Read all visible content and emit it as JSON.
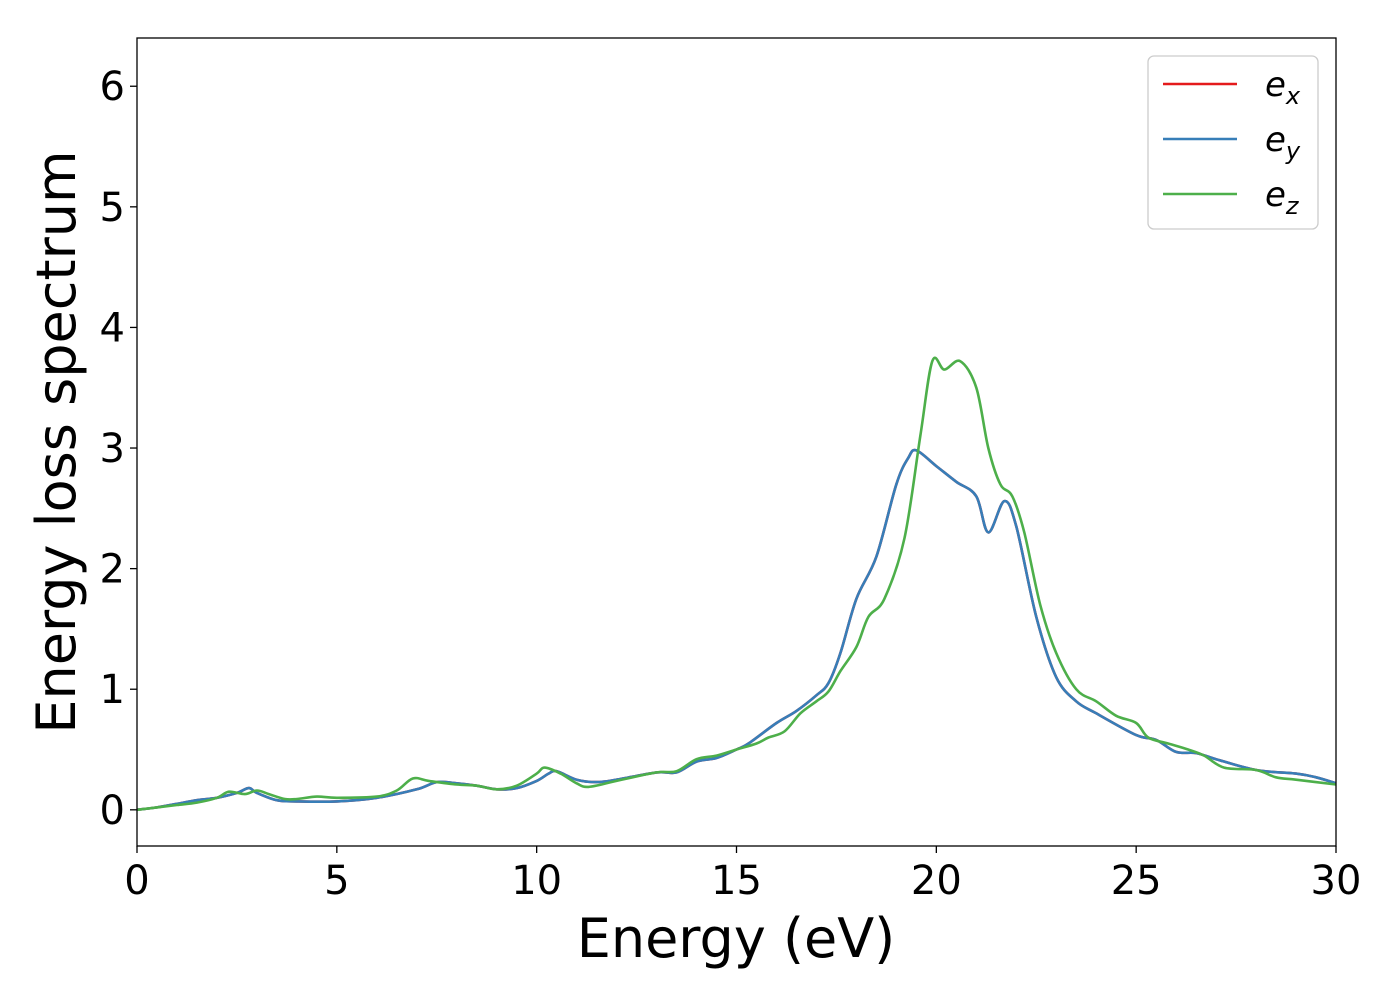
{
  "chart_data": {
    "type": "line",
    "xlabel": "Energy (eV)",
    "ylabel": "Energy loss spectrum",
    "xlim": [
      0,
      30
    ],
    "ylim": [
      -0.3,
      6.4
    ],
    "xticks": [
      0,
      5,
      10,
      15,
      20,
      25,
      30
    ],
    "yticks": [
      0,
      1,
      2,
      3,
      4,
      5,
      6
    ],
    "grid": false,
    "legend_position": "top-right",
    "series": [
      {
        "name_base": "e",
        "name_sub": "x",
        "color": "#e41a1c",
        "x": [
          0,
          0.5,
          1,
          1.5,
          2,
          2.5,
          2.8,
          3,
          3.5,
          4,
          5,
          6,
          7,
          7.5,
          8,
          8.5,
          9,
          9.5,
          10,
          10.3,
          10.5,
          11,
          11.5,
          12,
          13,
          13.5,
          14,
          14.5,
          15,
          15.3,
          16,
          16.5,
          17,
          17.3,
          17.6,
          18,
          18.5,
          19,
          19.3,
          19.5,
          20,
          20.5,
          21,
          21.3,
          21.7,
          22,
          22.5,
          23,
          23.5,
          24,
          25,
          25.5,
          26,
          26.5,
          27,
          28,
          29,
          29.5,
          30
        ],
        "y": [
          0,
          0.02,
          0.05,
          0.08,
          0.1,
          0.14,
          0.18,
          0.14,
          0.08,
          0.07,
          0.07,
          0.1,
          0.17,
          0.23,
          0.22,
          0.2,
          0.17,
          0.18,
          0.24,
          0.3,
          0.32,
          0.25,
          0.23,
          0.25,
          0.31,
          0.31,
          0.4,
          0.43,
          0.5,
          0.55,
          0.72,
          0.82,
          0.95,
          1.05,
          1.3,
          1.75,
          2.1,
          2.7,
          2.92,
          2.98,
          2.85,
          2.72,
          2.6,
          2.3,
          2.56,
          2.35,
          1.6,
          1.1,
          0.9,
          0.8,
          0.62,
          0.58,
          0.48,
          0.47,
          0.42,
          0.33,
          0.3,
          0.27,
          0.22
        ]
      },
      {
        "name_base": "e",
        "name_sub": "y",
        "color": "#377eb8",
        "x": [
          0,
          0.5,
          1,
          1.5,
          2,
          2.5,
          2.8,
          3,
          3.5,
          4,
          5,
          6,
          7,
          7.5,
          8,
          8.5,
          9,
          9.5,
          10,
          10.3,
          10.5,
          11,
          11.5,
          12,
          13,
          13.5,
          14,
          14.5,
          15,
          15.3,
          16,
          16.5,
          17,
          17.3,
          17.6,
          18,
          18.5,
          19,
          19.3,
          19.5,
          20,
          20.5,
          21,
          21.3,
          21.7,
          22,
          22.5,
          23,
          23.5,
          24,
          25,
          25.5,
          26,
          26.5,
          27,
          28,
          29,
          29.5,
          30
        ],
        "y": [
          0,
          0.02,
          0.05,
          0.08,
          0.1,
          0.14,
          0.18,
          0.14,
          0.08,
          0.07,
          0.07,
          0.1,
          0.17,
          0.23,
          0.22,
          0.2,
          0.17,
          0.18,
          0.24,
          0.3,
          0.32,
          0.25,
          0.23,
          0.25,
          0.31,
          0.31,
          0.4,
          0.43,
          0.5,
          0.55,
          0.72,
          0.82,
          0.95,
          1.05,
          1.3,
          1.75,
          2.1,
          2.7,
          2.92,
          2.98,
          2.85,
          2.72,
          2.6,
          2.3,
          2.56,
          2.35,
          1.6,
          1.1,
          0.9,
          0.8,
          0.62,
          0.58,
          0.48,
          0.47,
          0.42,
          0.33,
          0.3,
          0.27,
          0.22
        ]
      },
      {
        "name_base": "e",
        "name_sub": "z",
        "color": "#4daf4a",
        "x": [
          0,
          0.5,
          1,
          1.5,
          2,
          2.3,
          2.7,
          3,
          3.3,
          3.7,
          4,
          4.5,
          5,
          6,
          6.5,
          6.9,
          7.3,
          8,
          8.5,
          9,
          9.5,
          10,
          10.2,
          10.6,
          11,
          11.3,
          12,
          13,
          13.5,
          14,
          14.5,
          15,
          15.5,
          15.8,
          16.2,
          16.6,
          17,
          17.3,
          17.6,
          18,
          18.3,
          18.7,
          19.2,
          19.6,
          19.9,
          20.2,
          20.6,
          21,
          21.3,
          21.6,
          21.9,
          22.2,
          22.6,
          23,
          23.5,
          24,
          24.5,
          25,
          25.3,
          25.8,
          26.3,
          26.7,
          27.2,
          28,
          28.5,
          29,
          30
        ],
        "y": [
          0,
          0.02,
          0.04,
          0.06,
          0.1,
          0.15,
          0.13,
          0.16,
          0.13,
          0.09,
          0.09,
          0.11,
          0.1,
          0.11,
          0.16,
          0.26,
          0.24,
          0.21,
          0.2,
          0.17,
          0.2,
          0.3,
          0.35,
          0.3,
          0.22,
          0.19,
          0.24,
          0.31,
          0.32,
          0.42,
          0.45,
          0.5,
          0.55,
          0.6,
          0.65,
          0.8,
          0.9,
          0.98,
          1.15,
          1.35,
          1.6,
          1.75,
          2.25,
          3.1,
          3.72,
          3.65,
          3.72,
          3.5,
          3.0,
          2.7,
          2.6,
          2.3,
          1.7,
          1.3,
          1.0,
          0.9,
          0.78,
          0.72,
          0.6,
          0.55,
          0.5,
          0.45,
          0.35,
          0.33,
          0.27,
          0.25,
          0.21
        ]
      }
    ]
  }
}
